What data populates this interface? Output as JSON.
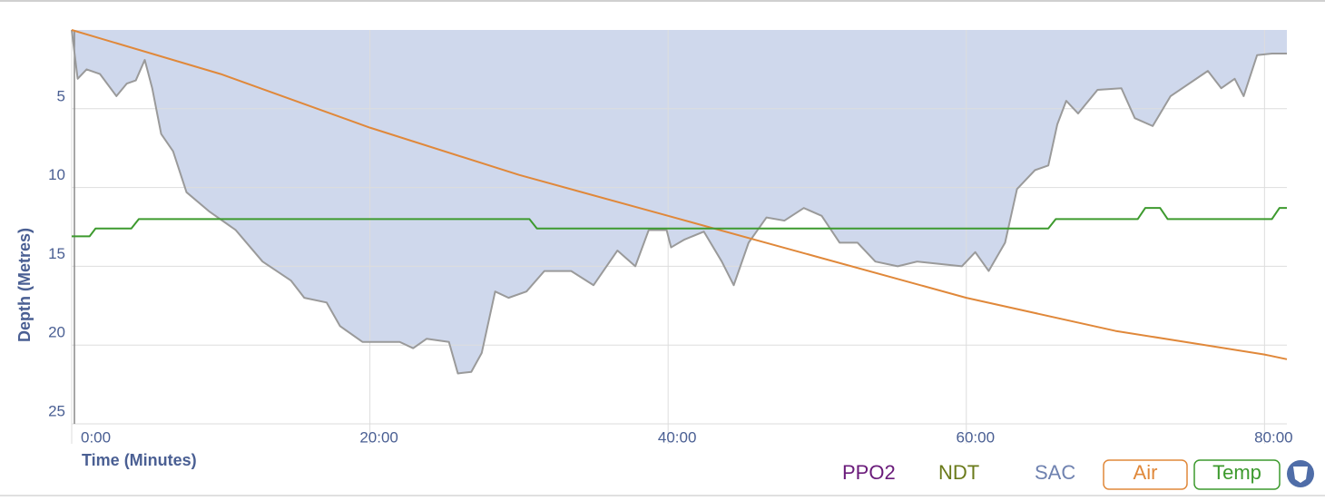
{
  "chart_data": {
    "type": "line",
    "xlabel": "Time (Minutes)",
    "ylabel": "Depth (Metres)",
    "xlim": [
      0,
      81.5
    ],
    "ylim": [
      0,
      25
    ],
    "y_inverted": true,
    "grid": true,
    "xticks": [
      {
        "value": 0,
        "label": "0:00"
      },
      {
        "value": 20,
        "label": "20:00"
      },
      {
        "value": 40,
        "label": "40:00"
      },
      {
        "value": 60,
        "label": "60:00"
      },
      {
        "value": 80,
        "label": "80:00"
      }
    ],
    "yticks": [
      5,
      10,
      15,
      20,
      25
    ],
    "depth": {
      "color": "#9a9a9a",
      "fill": "#cfd8ec",
      "x": [
        0,
        0.4,
        1,
        1.9,
        3,
        3.7,
        4.3,
        4.9,
        5.4,
        6,
        6.8,
        7.7,
        9.2,
        11,
        12.8,
        14.7,
        15.6,
        17.1,
        18,
        19.5,
        22,
        22.9,
        23.8,
        25.3,
        25.9,
        26.8,
        27.5,
        28.4,
        29.3,
        30.5,
        31.7,
        33.5,
        35,
        36.6,
        37.8,
        38.7,
        39.9,
        40.2,
        41.1,
        42.4,
        43.6,
        44.4,
        45.4,
        46.6,
        47.8,
        49.1,
        50.3,
        51.5,
        52.7,
        53.9,
        55.4,
        56.7,
        59.7,
        60.6,
        61.5,
        62.6,
        63.4,
        64.6,
        65.5,
        66.1,
        66.7,
        67.5,
        68.8,
        70.4,
        71.3,
        72.5,
        73.7,
        76.2,
        77.1,
        78,
        78.6,
        79.5,
        80.5,
        81.5
      ],
      "values": [
        0,
        3.1,
        2.5,
        2.8,
        4.2,
        3.4,
        3.2,
        1.9,
        3.7,
        6.6,
        7.7,
        10.3,
        11.5,
        12.7,
        14.7,
        15.9,
        17,
        17.3,
        18.8,
        19.8,
        19.8,
        20.2,
        19.6,
        19.8,
        21.8,
        21.7,
        20.5,
        16.6,
        17,
        16.6,
        15.3,
        15.3,
        16.2,
        14,
        15,
        12.7,
        12.7,
        13.8,
        13.3,
        12.8,
        14.7,
        16.2,
        13.5,
        11.9,
        12.1,
        11.3,
        11.8,
        13.5,
        13.5,
        14.7,
        15,
        14.7,
        15,
        14.1,
        15.3,
        13.5,
        10.1,
        8.9,
        8.6,
        6,
        4.5,
        5.3,
        3.8,
        3.7,
        5.6,
        6.1,
        4.2,
        2.6,
        3.7,
        3.1,
        4.2,
        1.6,
        1.5,
        1.5
      ]
    },
    "series": [
      {
        "name": "Air",
        "color": "#e0883a",
        "x": [
          0,
          10,
          20,
          30,
          40,
          50,
          60,
          70,
          80,
          81.5
        ],
        "values": [
          0,
          2.8,
          6.2,
          9.2,
          11.8,
          14.4,
          17,
          19.1,
          20.6,
          20.9
        ]
      },
      {
        "name": "Temp",
        "color": "#3d9a2e",
        "x": [
          0,
          1.2,
          1.6,
          4,
          4.5,
          30.7,
          31.2,
          65.5,
          66,
          71.5,
          72,
          73,
          73.5,
          80.5,
          81,
          81.5
        ],
        "values": [
          13.1,
          13.1,
          12.6,
          12.6,
          12,
          12,
          12.6,
          12.6,
          12,
          12,
          11.3,
          11.3,
          12,
          12,
          11.3,
          11.3
        ]
      }
    ],
    "legend_toggles": [
      {
        "name": "PPO2",
        "color": "#6a1b7a"
      },
      {
        "name": "NDT",
        "color": "#6a7a1a"
      },
      {
        "name": "SAC",
        "color": "#6f82b0"
      }
    ]
  }
}
